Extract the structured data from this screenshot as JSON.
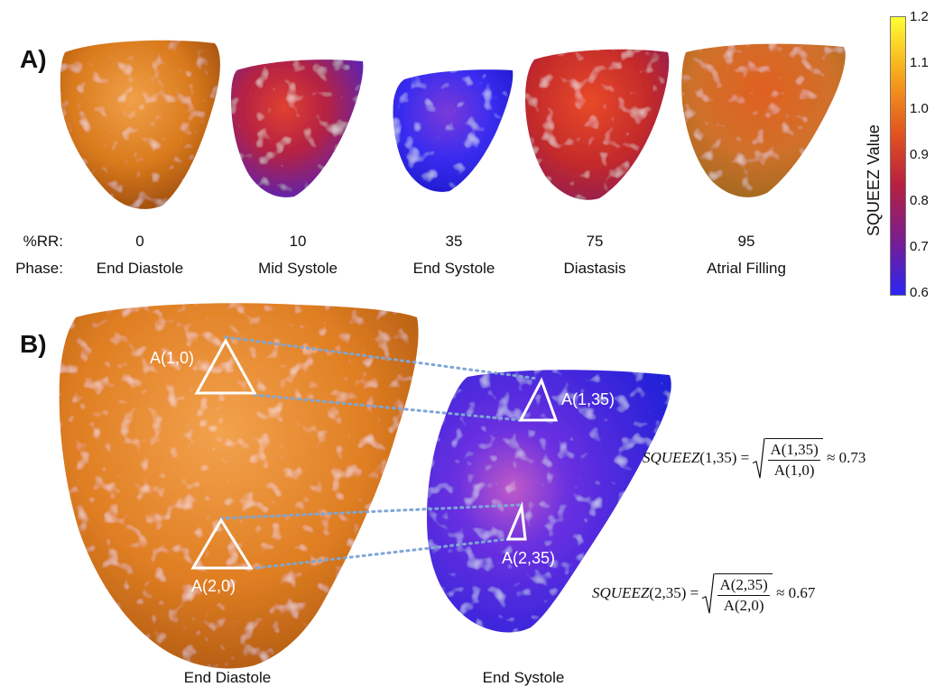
{
  "panel_a": {
    "label": "A)",
    "row_labels": {
      "rr": "%RR:",
      "phase": "Phase:"
    },
    "frames": [
      {
        "rr": "0",
        "phase": "End Diastole",
        "value": 1.03
      },
      {
        "rr": "10",
        "phase": "Mid Systole",
        "value": 0.8
      },
      {
        "rr": "35",
        "phase": "End Systole",
        "value": 0.68
      },
      {
        "rr": "75",
        "phase": "Diastasis",
        "value": 0.86
      },
      {
        "rr": "95",
        "phase": "Atrial Filling",
        "value": 0.95
      }
    ]
  },
  "colorbar": {
    "title": "SQUEEZ Value",
    "ticks": [
      "1.2",
      "1.1",
      "1.0",
      "0.9",
      "0.8",
      "0.7",
      "0.6"
    ],
    "min": 0.6,
    "max": 1.2,
    "colors": [
      "#ffff33",
      "#f6a01a",
      "#e2531f",
      "#b8203f",
      "#7a1d8e",
      "#2b25f4"
    ]
  },
  "panel_b": {
    "label": "B)",
    "triangles": {
      "ed_top": "A(1,0)",
      "ed_bottom": "A(2,0)",
      "es_top": "A(1,35)",
      "es_bottom": "A(2,35)"
    },
    "formulas": [
      {
        "lhs": "SQUEEZ",
        "args": "(1,35)",
        "num": "A(1,35)",
        "den": "A(1,0)",
        "result": "≈ 0.73"
      },
      {
        "lhs": "SQUEEZ",
        "args": "(2,35)",
        "num": "A(2,35)",
        "den": "A(2,0)",
        "result": "≈ 0.67"
      }
    ],
    "captions": {
      "left": "End Diastole",
      "right": "End Systole"
    }
  }
}
